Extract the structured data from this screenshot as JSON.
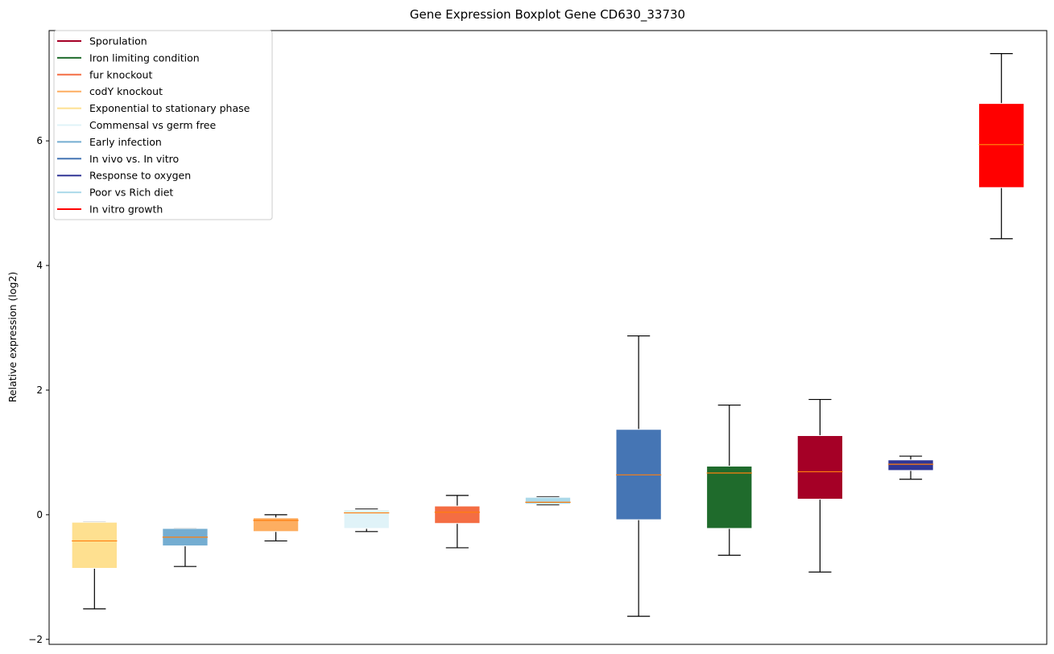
{
  "chart_data": {
    "type": "boxplot",
    "title": "Gene Expression Boxplot Gene CD630_33730",
    "xlabel": "",
    "ylabel": "Relative expression (log2)",
    "ylim": [
      -2.08,
      7.77
    ],
    "yticks": [
      -2,
      0,
      2,
      4,
      6
    ],
    "ytick_labels": [
      "−2",
      "0",
      "2",
      "4",
      "6"
    ],
    "legend_position": "top-left",
    "legend": [
      {
        "label": "Sporulation",
        "color": "#a50026"
      },
      {
        "label": "Iron limiting condition",
        "color": "#1f6b2c"
      },
      {
        "label": "fur knockout",
        "color": "#f46d43"
      },
      {
        "label": "codY knockout",
        "color": "#fdae61"
      },
      {
        "label": "Exponential to stationary phase",
        "color": "#fee090"
      },
      {
        "label": "Commensal vs germ free",
        "color": "#e0f3f8"
      },
      {
        "label": "Early infection",
        "color": "#74add1"
      },
      {
        "label": "In vivo vs. In vitro",
        "color": "#4575b4"
      },
      {
        "label": "Response to oxygen",
        "color": "#313695"
      },
      {
        "label": "Poor vs Rich diet",
        "color": "#abd9e9"
      },
      {
        "label": "In vitro growth",
        "color": "#ff0000"
      }
    ],
    "boxes": [
      {
        "name": "Exponential to stationary phase",
        "color": "#fee090",
        "whislo": -1.51,
        "q1": -0.86,
        "med": -0.42,
        "q3": -0.12,
        "whishi": -0.12
      },
      {
        "name": "Early infection",
        "color": "#74add1",
        "whislo": -0.83,
        "q1": -0.5,
        "med": -0.36,
        "q3": -0.22,
        "whishi": -0.22
      },
      {
        "name": "codY knockout",
        "color": "#fdae61",
        "whislo": -0.42,
        "q1": -0.27,
        "med": -0.09,
        "q3": -0.05,
        "whishi": 0.0
      },
      {
        "name": "Commensal vs germ free",
        "color": "#e0f3f8",
        "whislo": -0.27,
        "q1": -0.22,
        "med": 0.03,
        "q3": 0.08,
        "whishi": 0.09
      },
      {
        "name": "fur knockout",
        "color": "#f46d43",
        "whislo": -0.53,
        "q1": -0.14,
        "med": 0.04,
        "q3": 0.14,
        "whishi": 0.31
      },
      {
        "name": "Poor vs Rich diet",
        "color": "#abd9e9",
        "whislo": 0.16,
        "q1": 0.17,
        "med": 0.2,
        "q3": 0.28,
        "whishi": 0.29
      },
      {
        "name": "In vivo vs. In vitro",
        "color": "#4575b4",
        "whislo": -1.63,
        "q1": -0.08,
        "med": 0.64,
        "q3": 1.37,
        "whishi": 2.87
      },
      {
        "name": "Iron limiting condition",
        "color": "#1f6b2c",
        "whislo": -0.65,
        "q1": -0.22,
        "med": 0.67,
        "q3": 0.78,
        "whishi": 1.76
      },
      {
        "name": "Sporulation",
        "color": "#a50026",
        "whislo": -0.92,
        "q1": 0.25,
        "med": 0.69,
        "q3": 1.27,
        "whishi": 1.85
      },
      {
        "name": "Response to oxygen",
        "color": "#313695",
        "whislo": 0.57,
        "q1": 0.71,
        "med": 0.81,
        "q3": 0.88,
        "whishi": 0.94
      },
      {
        "name": "In vitro growth",
        "color": "#ff0000",
        "whislo": 4.43,
        "q1": 5.25,
        "med": 5.94,
        "q3": 6.6,
        "whishi": 7.4
      }
    ],
    "median_color": "#ff7f0e"
  }
}
